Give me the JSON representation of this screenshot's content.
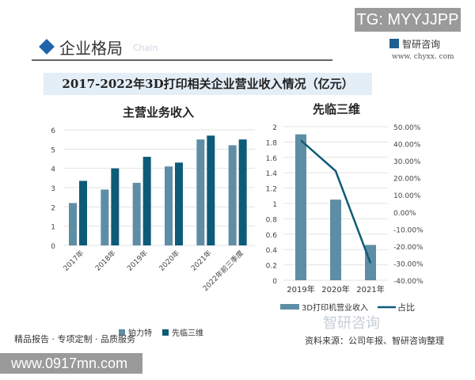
{
  "watermark_top": "TG: MYYJJPP",
  "section": {
    "title": "企业格局",
    "subtitle": "Chain"
  },
  "brand": {
    "name": "智研咨询",
    "url": "www. chyxx. com"
  },
  "main_title": "2017-2022年3D打印相关企业营业收入情况（亿元）",
  "chart_data": [
    {
      "type": "bar",
      "title": "主营业务收入",
      "categories": [
        "2017年",
        "2018年",
        "2019年",
        "2020年",
        "2021年",
        "2022年前三季度"
      ],
      "series": [
        {
          "name": "铂力特",
          "color": "#5e8ea5",
          "values": [
            2.2,
            2.9,
            3.25,
            4.1,
            5.5,
            5.2
          ]
        },
        {
          "name": "先临三维",
          "color": "#0e5b78",
          "values": [
            3.35,
            4.0,
            4.6,
            4.3,
            5.7,
            5.5
          ]
        }
      ],
      "ylim": [
        0,
        6
      ],
      "yticks": [
        "0",
        "1",
        "2",
        "3",
        "4",
        "5",
        "6"
      ],
      "grid": true,
      "legend": "bottom"
    },
    {
      "type": "bar+line",
      "title": "先临三维",
      "categories": [
        "2019年",
        "2020年",
        "2021年"
      ],
      "series": [
        {
          "name": "3D打印机营业收入",
          "type": "bar",
          "axis": "left",
          "color": "#5e8ea5",
          "values": [
            1.9,
            1.05,
            0.46
          ]
        },
        {
          "name": "占比",
          "type": "line",
          "axis": "right",
          "color": "#0e5b78",
          "values": [
            42,
            24,
            -30
          ]
        }
      ],
      "ylim": [
        0,
        2
      ],
      "yticks": [
        "0",
        "0.2",
        "0.4",
        "0.6",
        "0.8",
        "1",
        "1.2",
        "1.4",
        "1.6",
        "1.8",
        "2"
      ],
      "y2lim": [
        -40,
        50
      ],
      "y2ticks": [
        "-40.00%",
        "-30.00%",
        "-20.00%",
        "-10.00%",
        "0.00%",
        "10.00%",
        "20.00%",
        "30.00%",
        "40.00%",
        "50.00%"
      ],
      "grid": true,
      "legend": "bottom"
    }
  ],
  "footer": {
    "left": "精品报告 · 专项定制 · 品质服务",
    "source": "资料来源：公司年报、智研咨询整理",
    "watermark": "智研咨询"
  },
  "bottom_url": "www.0917mn.com"
}
